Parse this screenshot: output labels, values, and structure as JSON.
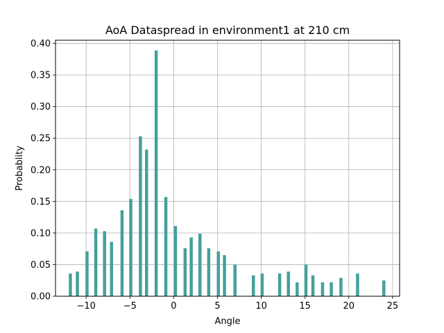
{
  "chart_data": {
    "type": "bar",
    "title": "AoA Dataspread in environment1 at 210 cm",
    "xlabel": "Angle",
    "ylabel": "Probablity",
    "xlim": [
      -13.5,
      25.8
    ],
    "ylim": [
      0,
      0.405
    ],
    "xticks": [
      -10,
      -5,
      0,
      5,
      10,
      15,
      20,
      25
    ],
    "xtick_labels": [
      "−10",
      "−5",
      "0",
      "5",
      "10",
      "15",
      "20",
      "25"
    ],
    "yticks": [
      0.0,
      0.05,
      0.1,
      0.15,
      0.2,
      0.25,
      0.3,
      0.35,
      0.4
    ],
    "ytick_labels": [
      "0.00",
      "0.05",
      "0.10",
      "0.15",
      "0.20",
      "0.25",
      "0.30",
      "0.35",
      "0.40"
    ],
    "grid": true,
    "bar_color": "#45a09a",
    "x": [
      -11.8,
      -11.0,
      -9.9,
      -8.9,
      -7.9,
      -7.1,
      -5.9,
      -4.9,
      -3.8,
      -3.1,
      -2.0,
      -0.9,
      0.2,
      1.3,
      2.0,
      3.0,
      4.0,
      5.1,
      5.8,
      7.0,
      9.1,
      10.1,
      12.1,
      13.1,
      14.1,
      15.1,
      15.9,
      17.0,
      18.0,
      19.1,
      21.0,
      24.0
    ],
    "values": [
      0.036,
      0.039,
      0.071,
      0.107,
      0.103,
      0.086,
      0.136,
      0.154,
      0.253,
      0.232,
      0.389,
      0.157,
      0.111,
      0.076,
      0.093,
      0.099,
      0.076,
      0.071,
      0.065,
      0.05,
      0.033,
      0.036,
      0.036,
      0.039,
      0.022,
      0.05,
      0.033,
      0.022,
      0.022,
      0.029,
      0.036,
      0.025
    ]
  }
}
